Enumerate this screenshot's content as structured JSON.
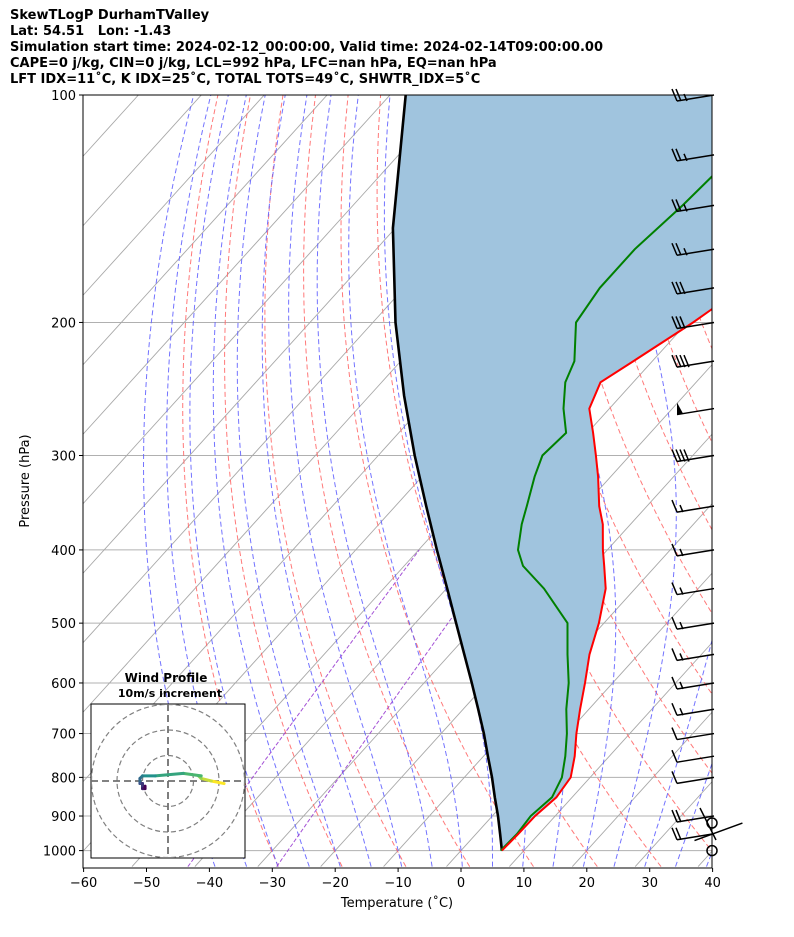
{
  "title_lines": [
    "SkewTLogP DurhamTValley",
    "Lat: 54.51   Lon: -1.43",
    "Simulation start time: 2024-02-12_00:00:00, Valid time: 2024-02-14T09:00:00.00",
    "CAPE=0 j/kg, CIN=0 j/kg, LCL=992 hPa, LFC=nan hPa, EQ=nan hPa",
    "LFT IDX=11˚C, K IDX=25˚C, TOTAL TOTS=49˚C, SHWTR_IDX=5˚C"
  ],
  "colors": {
    "temperature": "#ff0000",
    "dewpoint": "#008000",
    "parcel": "#000000",
    "shading": "#a0c4de",
    "dry_adiabat": "#ff6a6a",
    "moist_adiabat": "#5a5aff",
    "isotherm": "#a8a8a8",
    "mixing_ratio": "#9a3fd1"
  },
  "chart_data": [
    {
      "type": "line",
      "xlabel": "Temperature (˚C)",
      "ylabel": "Pressure (hPa)",
      "xlim": [
        -60,
        40
      ],
      "ylim": [
        1050,
        100
      ],
      "y_scale": "log",
      "skew": true,
      "grid": true,
      "x_ticks": [
        -60,
        -50,
        -40,
        -30,
        -20,
        -10,
        0,
        10,
        20,
        30,
        40
      ],
      "x_tick_labels": [
        "−60",
        "−50",
        "−40",
        "−30",
        "−20",
        "−10",
        "0",
        "10",
        "20",
        "30",
        "40"
      ],
      "y_ticks": [
        1000,
        900,
        800,
        700,
        600,
        500,
        400,
        300,
        200,
        100
      ],
      "y_tick_labels": [
        "1000",
        "900",
        "800",
        "700",
        "600",
        "500",
        "400",
        "300",
        "200",
        "100"
      ],
      "series": [
        {
          "role": "temperature",
          "pressure": [
            1000,
            950,
            900,
            850,
            800,
            750,
            700,
            650,
            600,
            550,
            500,
            450,
            420,
            400,
            370,
            350,
            320,
            300,
            280,
            260,
            240,
            225,
            200,
            180,
            160,
            140,
            120,
            110,
            100
          ],
          "values": [
            6.5,
            6.7,
            6.8,
            7.5,
            6.9,
            4.5,
            1.5,
            -1.4,
            -4.4,
            -7.8,
            -10.8,
            -14.7,
            -18.2,
            -20.7,
            -24.4,
            -27.6,
            -32.0,
            -35.4,
            -39.1,
            -43.2,
            -45.2,
            -43.0,
            -39.1,
            -36.3,
            -33.2,
            -29.5,
            -24.8,
            -22.6,
            -21.0
          ]
        },
        {
          "role": "dewpoint",
          "pressure": [
            1000,
            950,
            900,
            850,
            800,
            750,
            700,
            650,
            600,
            550,
            500,
            450,
            420,
            400,
            370,
            350,
            320,
            300,
            280,
            260,
            240,
            225,
            200,
            180,
            160,
            140,
            120,
            110,
            100
          ],
          "values": [
            6.3,
            6.5,
            6.1,
            6.8,
            5.5,
            3.0,
            0.0,
            -3.6,
            -7.0,
            -11.3,
            -15.8,
            -24.5,
            -31.1,
            -34.2,
            -37.3,
            -39.1,
            -42.1,
            -43.9,
            -43.4,
            -47.3,
            -50.8,
            -52.4,
            -57.7,
            -58.9,
            -58.9,
            -57.6,
            -56.7,
            -56.7,
            -56.9
          ]
        },
        {
          "role": "parcel",
          "pressure": [
            1000,
            950,
            900,
            850,
            800,
            750,
            700,
            650,
            600,
            550,
            500,
            450,
            400,
            350,
            300,
            250,
            200,
            150,
            100
          ],
          "values": [
            6.5,
            3.8,
            0.9,
            -2.3,
            -5.6,
            -9.3,
            -13.2,
            -17.6,
            -22.4,
            -27.7,
            -33.5,
            -39.9,
            -47.1,
            -55.1,
            -64.2,
            -74.5,
            -86.4,
            -100.4,
            -117.5
          ]
        }
      ],
      "wind_barbs": {
        "pressure": [
          100,
          120,
          140,
          160,
          180,
          200,
          225,
          260,
          300,
          350,
          400,
          450,
          500,
          550,
          600,
          650,
          700,
          750,
          800,
          900,
          950,
          1000
        ],
        "speed_kt": [
          25,
          25,
          25,
          25,
          30,
          30,
          40,
          50,
          40,
          15,
          15,
          15,
          15,
          15,
          15,
          15,
          10,
          10,
          10,
          20,
          20,
          5
        ]
      }
    },
    {
      "type": "line",
      "title": "Wind Profile",
      "subtitle": "10m/s increment",
      "xlim": [
        -22,
        22
      ],
      "ylim": [
        -22,
        22
      ],
      "u": [
        22,
        17,
        13,
        12,
        13,
        6,
        -5,
        -10,
        -11,
        -11,
        -10,
        -10,
        -9,
        -9
      ],
      "v": [
        -1,
        0,
        1,
        2,
        2,
        3,
        2,
        2,
        1,
        -1,
        -1,
        -3,
        -3,
        -2
      ]
    }
  ]
}
